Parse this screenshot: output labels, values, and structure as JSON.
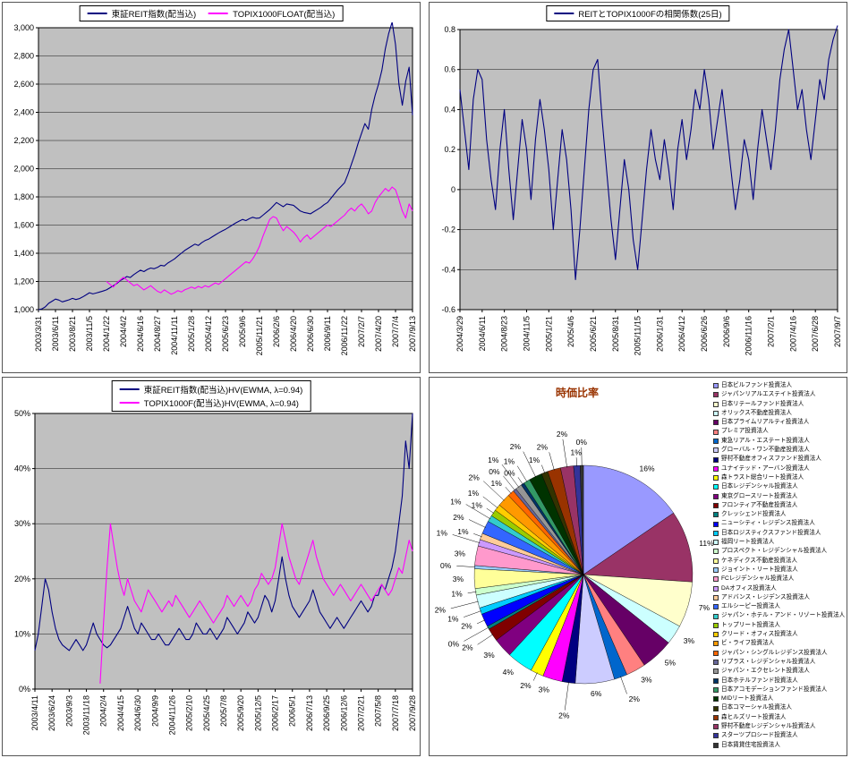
{
  "colors": {
    "navy": "#000080",
    "magenta": "#FF00FF",
    "plot_bg": "#C0C0C0",
    "grid": "#000000",
    "pie_title": "#993300"
  },
  "palette_excel": [
    "#9999FF",
    "#993366",
    "#FFFFCC",
    "#CCFFFF",
    "#660066",
    "#FF8080",
    "#0066CC",
    "#CCCCFF",
    "#000080",
    "#FF00FF",
    "#FFFF00",
    "#00FFFF",
    "#800080",
    "#800000",
    "#008080",
    "#0000FF",
    "#00CCFF",
    "#CCFFFF",
    "#CCFFCC",
    "#FFFF99",
    "#99CCFF",
    "#FF99CC",
    "#CC99FF",
    "#FFCC99",
    "#3366FF",
    "#33CCCC",
    "#99CC00",
    "#FFCC00",
    "#FF9900",
    "#FF6600",
    "#666699",
    "#969696",
    "#003366",
    "#339966",
    "#003300",
    "#333300",
    "#993300",
    "#993366",
    "#333399",
    "#333333"
  ],
  "chart_data": [
    {
      "id": "reit_vs_topix",
      "type": "line",
      "tick_every": 5,
      "ylim": [
        1000,
        3000
      ],
      "ytick_values": [
        1000,
        1200,
        1400,
        1600,
        1800,
        2000,
        2200,
        2400,
        2600,
        2800,
        3000
      ],
      "yticks": [
        "1,000",
        "1,200",
        "1,400",
        "1,600",
        "1,800",
        "2,000",
        "2,200",
        "2,400",
        "2,600",
        "2,800",
        "3,000"
      ],
      "xticks": [
        "2003/3/31",
        "2003/6/11",
        "2003/8/21",
        "2003/11/5",
        "2004/1/22",
        "2004/4/2",
        "2004/6/16",
        "2004/8/27",
        "2004/11/11",
        "2005/1/28",
        "2005/4/12",
        "2005/6/23",
        "2005/9/6",
        "2005/11/21",
        "2006/2/6",
        "2006/4/20",
        "2006/6/30",
        "2006/9/11",
        "2006/11/22",
        "2007/2/7",
        "2007/4/20",
        "2007/7/4",
        "2007/9/13"
      ],
      "series": [
        {
          "name": "東証REIT指数(配当込)",
          "color": "#000080",
          "values": [
            1000,
            1005,
            1020,
            1045,
            1060,
            1075,
            1068,
            1055,
            1062,
            1070,
            1080,
            1072,
            1078,
            1090,
            1105,
            1120,
            1112,
            1118,
            1125,
            1132,
            1140,
            1155,
            1170,
            1185,
            1205,
            1220,
            1235,
            1228,
            1248,
            1265,
            1280,
            1270,
            1285,
            1295,
            1290,
            1300,
            1315,
            1310,
            1330,
            1345,
            1360,
            1380,
            1400,
            1420,
            1435,
            1450,
            1465,
            1455,
            1475,
            1490,
            1500,
            1515,
            1530,
            1545,
            1558,
            1570,
            1585,
            1600,
            1615,
            1628,
            1640,
            1632,
            1645,
            1655,
            1648,
            1650,
            1670,
            1690,
            1710,
            1735,
            1760,
            1745,
            1730,
            1750,
            1745,
            1740,
            1720,
            1700,
            1690,
            1685,
            1680,
            1695,
            1710,
            1725,
            1745,
            1760,
            1790,
            1820,
            1850,
            1875,
            1900,
            1960,
            2030,
            2100,
            2180,
            2250,
            2320,
            2280,
            2420,
            2520,
            2600,
            2700,
            2850,
            2960,
            3040,
            2880,
            2600,
            2450,
            2620,
            2720,
            2380
          ]
        },
        {
          "name": "TOPIX1000FLOAT(配当込)",
          "color": "#FF00FF",
          "values": [
            null,
            null,
            null,
            null,
            null,
            null,
            null,
            null,
            null,
            null,
            null,
            null,
            null,
            null,
            null,
            null,
            null,
            null,
            null,
            null,
            1200,
            1180,
            1160,
            1190,
            1210,
            1230,
            1210,
            1190,
            1170,
            1180,
            1160,
            1140,
            1155,
            1170,
            1150,
            1130,
            1120,
            1140,
            1125,
            1110,
            1120,
            1135,
            1125,
            1140,
            1150,
            1160,
            1150,
            1165,
            1155,
            1170,
            1160,
            1175,
            1190,
            1180,
            1200,
            1220,
            1240,
            1260,
            1280,
            1300,
            1320,
            1340,
            1330,
            1360,
            1400,
            1450,
            1520,
            1580,
            1640,
            1660,
            1650,
            1600,
            1560,
            1590,
            1570,
            1550,
            1520,
            1480,
            1510,
            1530,
            1500,
            1520,
            1540,
            1560,
            1580,
            1600,
            1590,
            1610,
            1630,
            1650,
            1670,
            1700,
            1720,
            1700,
            1730,
            1750,
            1720,
            1680,
            1700,
            1760,
            1800,
            1830,
            1860,
            1840,
            1870,
            1850,
            1780,
            1700,
            1650,
            1750,
            1700
          ]
        }
      ]
    },
    {
      "id": "correlation_25d",
      "type": "line",
      "tick_every": 5,
      "ylim": [
        -0.6,
        0.8
      ],
      "ytick_values": [
        -0.6,
        -0.4,
        -0.2,
        0,
        0.2,
        0.4,
        0.6,
        0.8
      ],
      "yticks": [
        "-0.6",
        "-0.4",
        "-0.2",
        "0",
        "0.2",
        "0.4",
        "0.6",
        "0.8"
      ],
      "xticks": [
        "2004/3/29",
        "2004/6/11",
        "2004/8/23",
        "2004/11/5",
        "2005/1/21",
        "2005/4/6",
        "2005/6/21",
        "2005/8/31",
        "2005/11/15",
        "2006/1/31",
        "2006/4/12",
        "2006/6/26",
        "2006/9/6",
        "2006/11/16",
        "2007/2/1",
        "2007/4/16",
        "2007/6/28",
        "2007/9/7"
      ],
      "series": [
        {
          "name": "REITとTOPIX1000Fの相関係数(25日)",
          "color": "#000080",
          "values": [
            0.5,
            0.3,
            0.1,
            0.45,
            0.6,
            0.55,
            0.25,
            0.05,
            -0.1,
            0.2,
            0.4,
            0.1,
            -0.15,
            0.1,
            0.35,
            0.2,
            -0.05,
            0.25,
            0.45,
            0.3,
            0.1,
            -0.2,
            0.05,
            0.3,
            0.15,
            -0.1,
            -0.45,
            -0.2,
            0.1,
            0.4,
            0.6,
            0.65,
            0.35,
            0.1,
            -0.15,
            -0.35,
            -0.1,
            0.15,
            0,
            -0.25,
            -0.4,
            -0.15,
            0.1,
            0.3,
            0.15,
            0.05,
            0.25,
            0.1,
            -0.1,
            0.2,
            0.35,
            0.15,
            0.3,
            0.5,
            0.4,
            0.6,
            0.45,
            0.2,
            0.35,
            0.5,
            0.3,
            0.1,
            -0.1,
            0.05,
            0.25,
            0.15,
            -0.05,
            0.2,
            0.4,
            0.25,
            0.1,
            0.3,
            0.55,
            0.7,
            0.8,
            0.6,
            0.4,
            0.5,
            0.3,
            0.15,
            0.35,
            0.55,
            0.45,
            0.65,
            0.75,
            0.82
          ]
        }
      ]
    },
    {
      "id": "historical_volatility",
      "type": "line",
      "tick_every": 5,
      "ylim": [
        0,
        50
      ],
      "ytick_values": [
        0,
        10,
        20,
        30,
        40,
        50
      ],
      "yticks": [
        "0%",
        "10%",
        "20%",
        "30%",
        "40%",
        "50%"
      ],
      "xticks": [
        "2003/4/11",
        "2003/6/24",
        "2003/9/3",
        "2003/11/18",
        "2004/2/4",
        "2004/4/15",
        "2004/6/30",
        "2004/9/9",
        "2004/11/26",
        "2005/2/10",
        "2005/4/25",
        "2005/7/8",
        "2005/9/20",
        "2005/12/5",
        "2006/2/17",
        "2006/5/1",
        "2006/7/13",
        "2006/9/25",
        "2006/12/6",
        "2007/2/21",
        "2007/5/8",
        "2007/7/18",
        "2007/9/28"
      ],
      "series": [
        {
          "name": "東証REIT指数(配当込)HV(EWMA, λ=0.94)",
          "color": "#000080",
          "values": [
            7,
            10,
            15,
            20,
            18,
            14,
            11,
            9,
            8,
            7.5,
            7,
            8,
            9,
            8,
            7,
            8,
            10,
            12,
            10,
            9,
            8,
            7.5,
            8,
            9,
            10,
            11,
            13,
            15,
            13,
            11,
            10,
            12,
            11,
            10,
            9,
            9,
            10,
            9,
            8,
            8,
            9,
            10,
            11,
            10,
            9,
            9,
            10,
            12,
            11,
            10,
            10,
            11,
            10,
            9,
            10,
            11,
            13,
            12,
            11,
            10,
            11,
            12,
            14,
            13,
            12,
            13,
            15,
            17,
            16,
            14,
            16,
            20,
            24,
            20,
            17,
            15,
            14,
            13,
            14,
            15,
            16,
            18,
            16,
            14,
            13,
            12,
            11,
            12,
            13,
            12,
            11,
            12,
            13,
            14,
            15,
            16,
            15,
            14,
            15,
            17,
            17,
            19,
            18,
            20,
            22,
            25,
            30,
            35,
            45,
            40,
            50
          ]
        },
        {
          "name": "TOPIX1000F(配当込)HV(EWMA, λ=0.94)",
          "color": "#FF00FF",
          "values": [
            null,
            null,
            null,
            null,
            null,
            null,
            null,
            null,
            null,
            null,
            null,
            null,
            null,
            null,
            null,
            null,
            null,
            null,
            null,
            1,
            12,
            22,
            30,
            26,
            22,
            19,
            17,
            20,
            18,
            16,
            15,
            14,
            16,
            18,
            17,
            16,
            15,
            14,
            15,
            16,
            15,
            17,
            16,
            15,
            14,
            13,
            14,
            15,
            16,
            15,
            14,
            13,
            12,
            13,
            14,
            15,
            17,
            16,
            15,
            16,
            17,
            16,
            15,
            16,
            18,
            19,
            21,
            20,
            19,
            20,
            22,
            26,
            30,
            27,
            24,
            22,
            20,
            19,
            21,
            23,
            25,
            27,
            24,
            22,
            20,
            19,
            18,
            17,
            18,
            19,
            18,
            17,
            16,
            17,
            18,
            19,
            18,
            17,
            16,
            17,
            18,
            19,
            18,
            17,
            18,
            20,
            22,
            21,
            24,
            27,
            25
          ]
        }
      ]
    },
    {
      "id": "market_cap_ratio",
      "type": "pie",
      "title": "時価比率",
      "values": [
        16,
        11,
        7,
        3,
        5,
        3,
        2,
        6,
        2,
        3,
        2,
        4,
        3,
        2,
        0.5,
        2,
        1,
        2,
        1,
        3,
        0.5,
        3,
        1,
        1,
        2,
        1,
        1,
        1,
        2,
        1,
        0.5,
        1,
        0.5,
        1,
        2,
        1,
        2,
        2,
        1,
        0.5
      ],
      "labels": [
        "16%",
        "11%",
        "7%",
        "3%",
        "5%",
        "3%",
        "2%",
        "6%",
        "2%",
        "3%",
        "2%",
        "4%",
        "3%",
        "2%",
        "0%",
        "2%",
        "1%",
        "2%",
        "1%",
        "3%",
        "0%",
        "3%",
        "1%",
        "1%",
        "2%",
        "1%",
        "1%",
        "1%",
        "2%",
        "1%",
        "0%",
        "1%",
        "0%",
        "1%",
        "2%",
        "1%",
        "2%",
        "2%",
        "1%",
        "0%"
      ],
      "names": [
        "日本ビルファンド投資法人",
        "ジャパンリアルエステイト投資法人",
        "日本リテールファンド投資法人",
        "オリックス不動産投資法人",
        "日本プライムリアルティ投資法人",
        "プレミア投資法人",
        "東急リアル・エステート投資法人",
        "グローバル・ワン不動産投資法人",
        "野村不動産オフィスファンド投資法人",
        "ユナイテッド・アーバン投資法人",
        "森トラスト総合リート投資法人",
        "日本レジデンシャル投資法人",
        "東京グロースリート投資法人",
        "フロンティア不動産投資法人",
        "クレッシェンド投資法人",
        "ニューシティ・レジデンス投資法人",
        "日本ロジスティクスファンド投資法人",
        "福岡リート投資法人",
        "プロスペクト・レジデンシャル投資法人",
        "ケネディクス不動産投資法人",
        "ジョイント・リート投資法人",
        "FCレジデンシャル投資法人",
        "DAオフィス投資法人",
        "アドバンス・レジデンス投資法人",
        "エルシーピー投資法人",
        "ジャパン・ホテル・アンド・リゾート投資法人",
        "トップリート投資法人",
        "クリード・オフィス投資法人",
        "ビ・ライフ投資法人",
        "ジャパン・シングルレジデンス投資法人",
        "リプラス・レジデンシャル投資法人",
        "ジャパン・エクセレント投資法人",
        "日本ホテルファンド投資法人",
        "日本アコモデーションファンド投資法人",
        "MIDリート投資法人",
        "日本コマーシャル投資法人",
        "森ヒルズリート投資法人",
        "野村不動産レジデンシャル投資法人",
        "スターツプロシード投資法人",
        "日本賃貸住宅投資法人"
      ]
    }
  ]
}
